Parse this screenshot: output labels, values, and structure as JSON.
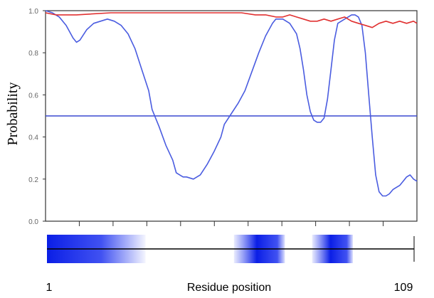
{
  "chart_data": {
    "type": "line",
    "title": "",
    "xlabel": "Residue position",
    "ylabel": "Probability",
    "x_start_label": "1",
    "x_end_label": "109",
    "xlim": [
      1,
      109
    ],
    "ylim": [
      0.0,
      1.0
    ],
    "ytick_labels": [
      "0.0",
      "0.2",
      "0.4",
      "0.6",
      "0.8",
      "1.0"
    ],
    "threshold": 0.5,
    "grid": false,
    "legend": "none",
    "colors": {
      "blue": "#4a5ce0",
      "red": "#e03030",
      "threshold": "#3a48d0",
      "band": "#0a1ee6"
    },
    "series": [
      {
        "points": [
          [
            1,
            1.0
          ],
          [
            3,
            0.99
          ],
          [
            5,
            0.97
          ],
          [
            7,
            0.93
          ],
          [
            9,
            0.87
          ],
          [
            10,
            0.85
          ],
          [
            11,
            0.86
          ],
          [
            13,
            0.91
          ],
          [
            15,
            0.94
          ],
          [
            17,
            0.95
          ],
          [
            19,
            0.96
          ],
          [
            21,
            0.95
          ],
          [
            23,
            0.93
          ],
          [
            25,
            0.89
          ],
          [
            27,
            0.82
          ],
          [
            29,
            0.72
          ],
          [
            31,
            0.62
          ],
          [
            32,
            0.53
          ],
          [
            34,
            0.45
          ],
          [
            36,
            0.36
          ],
          [
            38,
            0.29
          ],
          [
            39,
            0.23
          ],
          [
            41,
            0.21
          ],
          [
            42,
            0.21
          ],
          [
            44,
            0.2
          ],
          [
            46,
            0.22
          ],
          [
            48,
            0.27
          ],
          [
            50,
            0.33
          ],
          [
            52,
            0.4
          ],
          [
            53,
            0.46
          ],
          [
            55,
            0.51
          ],
          [
            57,
            0.56
          ],
          [
            59,
            0.62
          ],
          [
            61,
            0.71
          ],
          [
            63,
            0.8
          ],
          [
            65,
            0.88
          ],
          [
            67,
            0.94
          ],
          [
            68,
            0.96
          ],
          [
            70,
            0.96
          ],
          [
            72,
            0.94
          ],
          [
            74,
            0.89
          ],
          [
            75,
            0.82
          ],
          [
            76,
            0.72
          ],
          [
            77,
            0.6
          ],
          [
            78,
            0.52
          ],
          [
            79,
            0.48
          ],
          [
            80,
            0.47
          ],
          [
            81,
            0.47
          ],
          [
            82,
            0.49
          ],
          [
            83,
            0.58
          ],
          [
            84,
            0.72
          ],
          [
            85,
            0.86
          ],
          [
            86,
            0.94
          ],
          [
            88,
            0.96
          ],
          [
            89,
            0.97
          ],
          [
            90,
            0.98
          ],
          [
            91,
            0.98
          ],
          [
            92,
            0.97
          ],
          [
            93,
            0.93
          ],
          [
            94,
            0.8
          ],
          [
            95,
            0.6
          ],
          [
            96,
            0.4
          ],
          [
            97,
            0.22
          ],
          [
            98,
            0.14
          ],
          [
            99,
            0.12
          ],
          [
            100,
            0.12
          ],
          [
            101,
            0.13
          ],
          [
            102,
            0.15
          ],
          [
            103,
            0.16
          ],
          [
            104,
            0.17
          ],
          [
            105,
            0.19
          ],
          [
            106,
            0.21
          ],
          [
            107,
            0.22
          ],
          [
            108,
            0.2
          ],
          [
            109,
            0.19
          ]
        ]
      },
      {
        "points": [
          [
            1,
            0.99
          ],
          [
            4,
            0.98
          ],
          [
            10,
            0.98
          ],
          [
            20,
            0.99
          ],
          [
            30,
            0.99
          ],
          [
            40,
            0.99
          ],
          [
            50,
            0.99
          ],
          [
            58,
            0.99
          ],
          [
            62,
            0.98
          ],
          [
            65,
            0.98
          ],
          [
            68,
            0.97
          ],
          [
            70,
            0.97
          ],
          [
            72,
            0.98
          ],
          [
            74,
            0.97
          ],
          [
            76,
            0.96
          ],
          [
            78,
            0.95
          ],
          [
            80,
            0.95
          ],
          [
            82,
            0.96
          ],
          [
            84,
            0.95
          ],
          [
            86,
            0.96
          ],
          [
            88,
            0.97
          ],
          [
            90,
            0.95
          ],
          [
            92,
            0.94
          ],
          [
            94,
            0.93
          ],
          [
            96,
            0.92
          ],
          [
            98,
            0.94
          ],
          [
            100,
            0.95
          ],
          [
            102,
            0.94
          ],
          [
            104,
            0.95
          ],
          [
            106,
            0.94
          ],
          [
            108,
            0.95
          ],
          [
            109,
            0.94
          ]
        ]
      }
    ],
    "bands": [
      {
        "from": 1,
        "to": 30
      },
      {
        "from": 56,
        "to": 71
      },
      {
        "from": 79,
        "to": 91
      }
    ]
  }
}
